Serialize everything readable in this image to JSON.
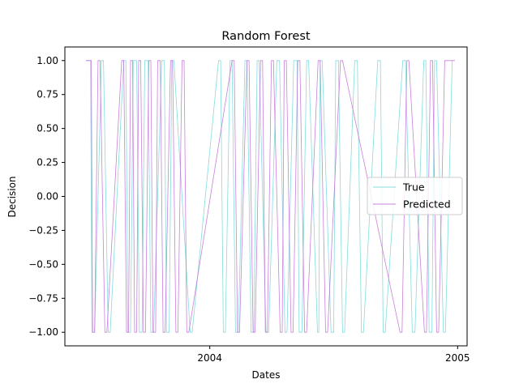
{
  "chart_data": {
    "type": "line",
    "title": "Random Forest",
    "xlabel": "Dates",
    "ylabel": "Decision",
    "xlim": [
      "2003-06-01",
      "2005-01-15"
    ],
    "ylim": [
      -1.1,
      1.1
    ],
    "x_ticks": [
      {
        "date": "2004-01-01",
        "label": "2004"
      },
      {
        "date": "2005-01-01",
        "label": "2005"
      }
    ],
    "y_ticks": [
      {
        "value": 1.0,
        "label": "1.00"
      },
      {
        "value": 0.75,
        "label": "0.75"
      },
      {
        "value": 0.5,
        "label": "0.50"
      },
      {
        "value": 0.25,
        "label": "0.25"
      },
      {
        "value": 0.0,
        "label": "0.00"
      },
      {
        "value": -0.25,
        "label": "−0.25"
      },
      {
        "value": -0.5,
        "label": "−0.50"
      },
      {
        "value": -0.75,
        "label": "−0.75"
      },
      {
        "value": -1.0,
        "label": "−1.00"
      }
    ],
    "legend_position": "center-right",
    "grid": false,
    "series": [
      {
        "name": "True",
        "color": "#6ed6d6",
        "x": [
          "2003-07-02",
          "2003-07-09",
          "2003-07-11",
          "2003-07-15",
          "2003-07-25",
          "2003-07-28",
          "2003-08-04",
          "2003-08-07",
          "2003-08-27",
          "2003-08-30",
          "2003-09-02",
          "2003-09-06",
          "2003-09-10",
          "2003-09-15",
          "2003-09-19",
          "2003-09-23",
          "2003-09-27",
          "2003-10-02",
          "2003-10-06",
          "2003-10-10",
          "2003-10-22",
          "2003-10-26",
          "2003-10-29",
          "2003-11-02",
          "2003-11-06",
          "2003-11-09",
          "2003-12-03",
          "2003-12-06",
          "2004-01-14",
          "2004-01-17",
          "2004-01-21",
          "2004-01-24",
          "2004-01-31",
          "2004-02-03",
          "2004-02-08",
          "2004-02-12",
          "2004-02-22",
          "2004-02-25",
          "2004-03-02",
          "2004-03-06",
          "2004-03-11",
          "2004-03-14",
          "2004-03-24",
          "2004-03-28",
          "2004-04-09",
          "2004-04-13",
          "2004-04-21",
          "2004-04-24",
          "2004-05-04",
          "2004-05-09",
          "2004-05-12",
          "2004-05-16",
          "2004-05-23",
          "2004-05-26",
          "2004-06-08",
          "2004-06-10",
          "2004-06-12",
          "2004-06-15",
          "2004-06-28",
          "2004-07-02",
          "2004-07-05",
          "2004-07-09",
          "2004-07-15",
          "2004-07-18",
          "2004-08-02",
          "2004-08-06",
          "2004-08-12",
          "2004-08-15",
          "2004-09-05",
          "2004-09-09",
          "2004-09-13",
          "2004-09-16",
          "2004-10-12",
          "2004-10-16",
          "2004-10-26",
          "2004-10-30",
          "2004-11-12",
          "2004-11-15",
          "2004-11-20",
          "2004-11-24",
          "2004-11-28",
          "2004-12-01",
          "2004-12-11",
          "2004-12-14",
          "2004-12-24"
        ],
        "y": [
          1,
          1,
          -1,
          -1,
          1,
          1,
          -1,
          -1,
          1,
          1,
          -1,
          -1,
          1,
          1,
          -1,
          -1,
          1,
          1,
          -1,
          -1,
          1,
          1,
          -1,
          -1,
          1,
          1,
          -1,
          -1,
          1,
          1,
          -1,
          -1,
          1,
          1,
          -1,
          -1,
          1,
          1,
          -1,
          -1,
          1,
          1,
          -1,
          -1,
          1,
          1,
          -1,
          -1,
          1,
          1,
          -1,
          -1,
          1,
          1,
          -1,
          -1,
          1,
          1,
          -1,
          -1,
          1,
          1,
          -1,
          -1,
          1,
          1,
          -1,
          -1,
          1,
          1,
          -1,
          -1,
          1,
          1,
          -1,
          -1,
          1,
          1,
          -1,
          -1,
          1,
          1,
          -1,
          -1,
          1
        ]
      },
      {
        "name": "Predicted",
        "color": "#c06ad6",
        "x": [
          "2003-07-02",
          "2003-07-10",
          "2003-07-12",
          "2003-07-15",
          "2003-07-20",
          "2003-07-23",
          "2003-07-30",
          "2003-08-02",
          "2003-08-24",
          "2003-08-27",
          "2003-08-31",
          "2003-09-03",
          "2003-09-06",
          "2003-09-09",
          "2003-09-12",
          "2003-09-15",
          "2003-09-18",
          "2003-09-21",
          "2003-09-25",
          "2003-09-28",
          "2003-10-03",
          "2003-10-06",
          "2003-10-09",
          "2003-10-13",
          "2003-10-16",
          "2003-10-20",
          "2003-10-24",
          "2003-10-27",
          "2003-11-04",
          "2003-11-07",
          "2003-11-12",
          "2003-11-15",
          "2003-11-21",
          "2003-11-24",
          "2003-11-28",
          "2003-12-01",
          "2004-02-03",
          "2004-02-06",
          "2004-02-11",
          "2004-02-14",
          "2004-02-25",
          "2004-02-28",
          "2004-03-05",
          "2004-03-08",
          "2004-03-16",
          "2004-03-19",
          "2004-03-23",
          "2004-03-26",
          "2004-04-01",
          "2004-04-04",
          "2004-04-14",
          "2004-04-17",
          "2004-04-20",
          "2004-04-23",
          "2004-04-30",
          "2004-05-03",
          "2004-05-10",
          "2004-05-13",
          "2004-05-20",
          "2004-05-23",
          "2004-06-09",
          "2004-06-12",
          "2004-06-20",
          "2004-06-23",
          "2004-07-12",
          "2004-07-15",
          "2004-10-08",
          "2004-10-11",
          "2004-10-18",
          "2004-10-21",
          "2004-11-13",
          "2004-11-16",
          "2004-11-22",
          "2004-11-25",
          "2004-12-01",
          "2004-12-04",
          "2004-12-13",
          "2004-12-16",
          "2004-12-28"
        ],
        "y": [
          1,
          1,
          -1,
          -1,
          1,
          1,
          -1,
          -1,
          1,
          1,
          -1,
          -1,
          1,
          1,
          -1,
          -1,
          1,
          1,
          -1,
          -1,
          1,
          1,
          -1,
          -1,
          1,
          1,
          -1,
          -1,
          1,
          1,
          -1,
          -1,
          1,
          1,
          -1,
          -1,
          1,
          1,
          -1,
          -1,
          1,
          1,
          -1,
          -1,
          1,
          1,
          -1,
          -1,
          1,
          1,
          -1,
          -1,
          1,
          1,
          -1,
          -1,
          1,
          1,
          -1,
          -1,
          1,
          1,
          -1,
          -1,
          1,
          1,
          -1,
          -1,
          1,
          1,
          -1,
          -1,
          1,
          1,
          -1,
          -1,
          1,
          1,
          1
        ]
      }
    ]
  }
}
